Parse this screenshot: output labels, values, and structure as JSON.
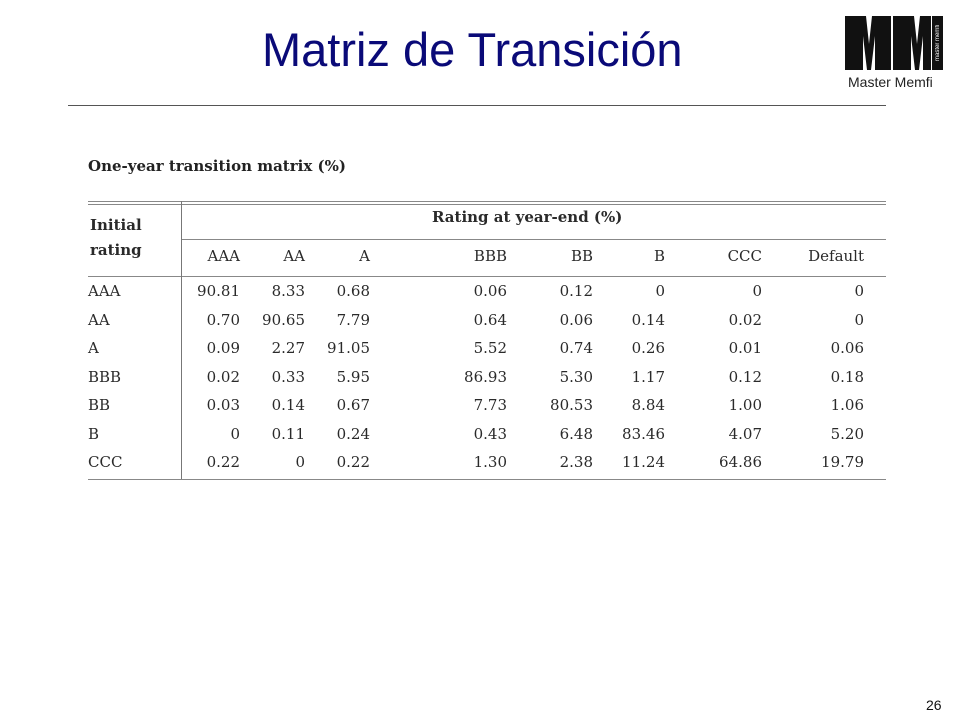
{
  "slide": {
    "title": "Matriz de Transición",
    "page_number": "26"
  },
  "logo": {
    "mark": "MM",
    "subtitle": "Master Memfi",
    "vertical_text": "master memfi"
  },
  "table": {
    "caption": "One-year transition matrix (%)",
    "row_header_line1": "Initial",
    "row_header_line2": "rating",
    "group_header": "Rating at year-end (%)",
    "columns": [
      "AAA",
      "AA",
      "A",
      "BBB",
      "BB",
      "B",
      "CCC",
      "Default"
    ],
    "rows": [
      {
        "rating": "AAA",
        "values": [
          "90.81",
          "8.33",
          "0.68",
          "0.06",
          "0.12",
          "0",
          "0",
          "0"
        ]
      },
      {
        "rating": "AA",
        "values": [
          "0.70",
          "90.65",
          "7.79",
          "0.64",
          "0.06",
          "0.14",
          "0.02",
          "0"
        ]
      },
      {
        "rating": "A",
        "values": [
          "0.09",
          "2.27",
          "91.05",
          "5.52",
          "0.74",
          "0.26",
          "0.01",
          "0.06"
        ]
      },
      {
        "rating": "BBB",
        "values": [
          "0.02",
          "0.33",
          "5.95",
          "86.93",
          "5.30",
          "1.17",
          "0.12",
          "0.18"
        ]
      },
      {
        "rating": "BB",
        "values": [
          "0.03",
          "0.14",
          "0.67",
          "7.73",
          "80.53",
          "8.84",
          "1.00",
          "1.06"
        ]
      },
      {
        "rating": "B",
        "values": [
          "0",
          "0.11",
          "0.24",
          "0.43",
          "6.48",
          "83.46",
          "4.07",
          "5.20"
        ]
      },
      {
        "rating": "CCC",
        "values": [
          "0.22",
          "0",
          "0.22",
          "1.30",
          "2.38",
          "11.24",
          "64.86",
          "19.79"
        ]
      }
    ]
  },
  "colors": {
    "title": "#0a0a78",
    "text": "#2a2a2a"
  }
}
